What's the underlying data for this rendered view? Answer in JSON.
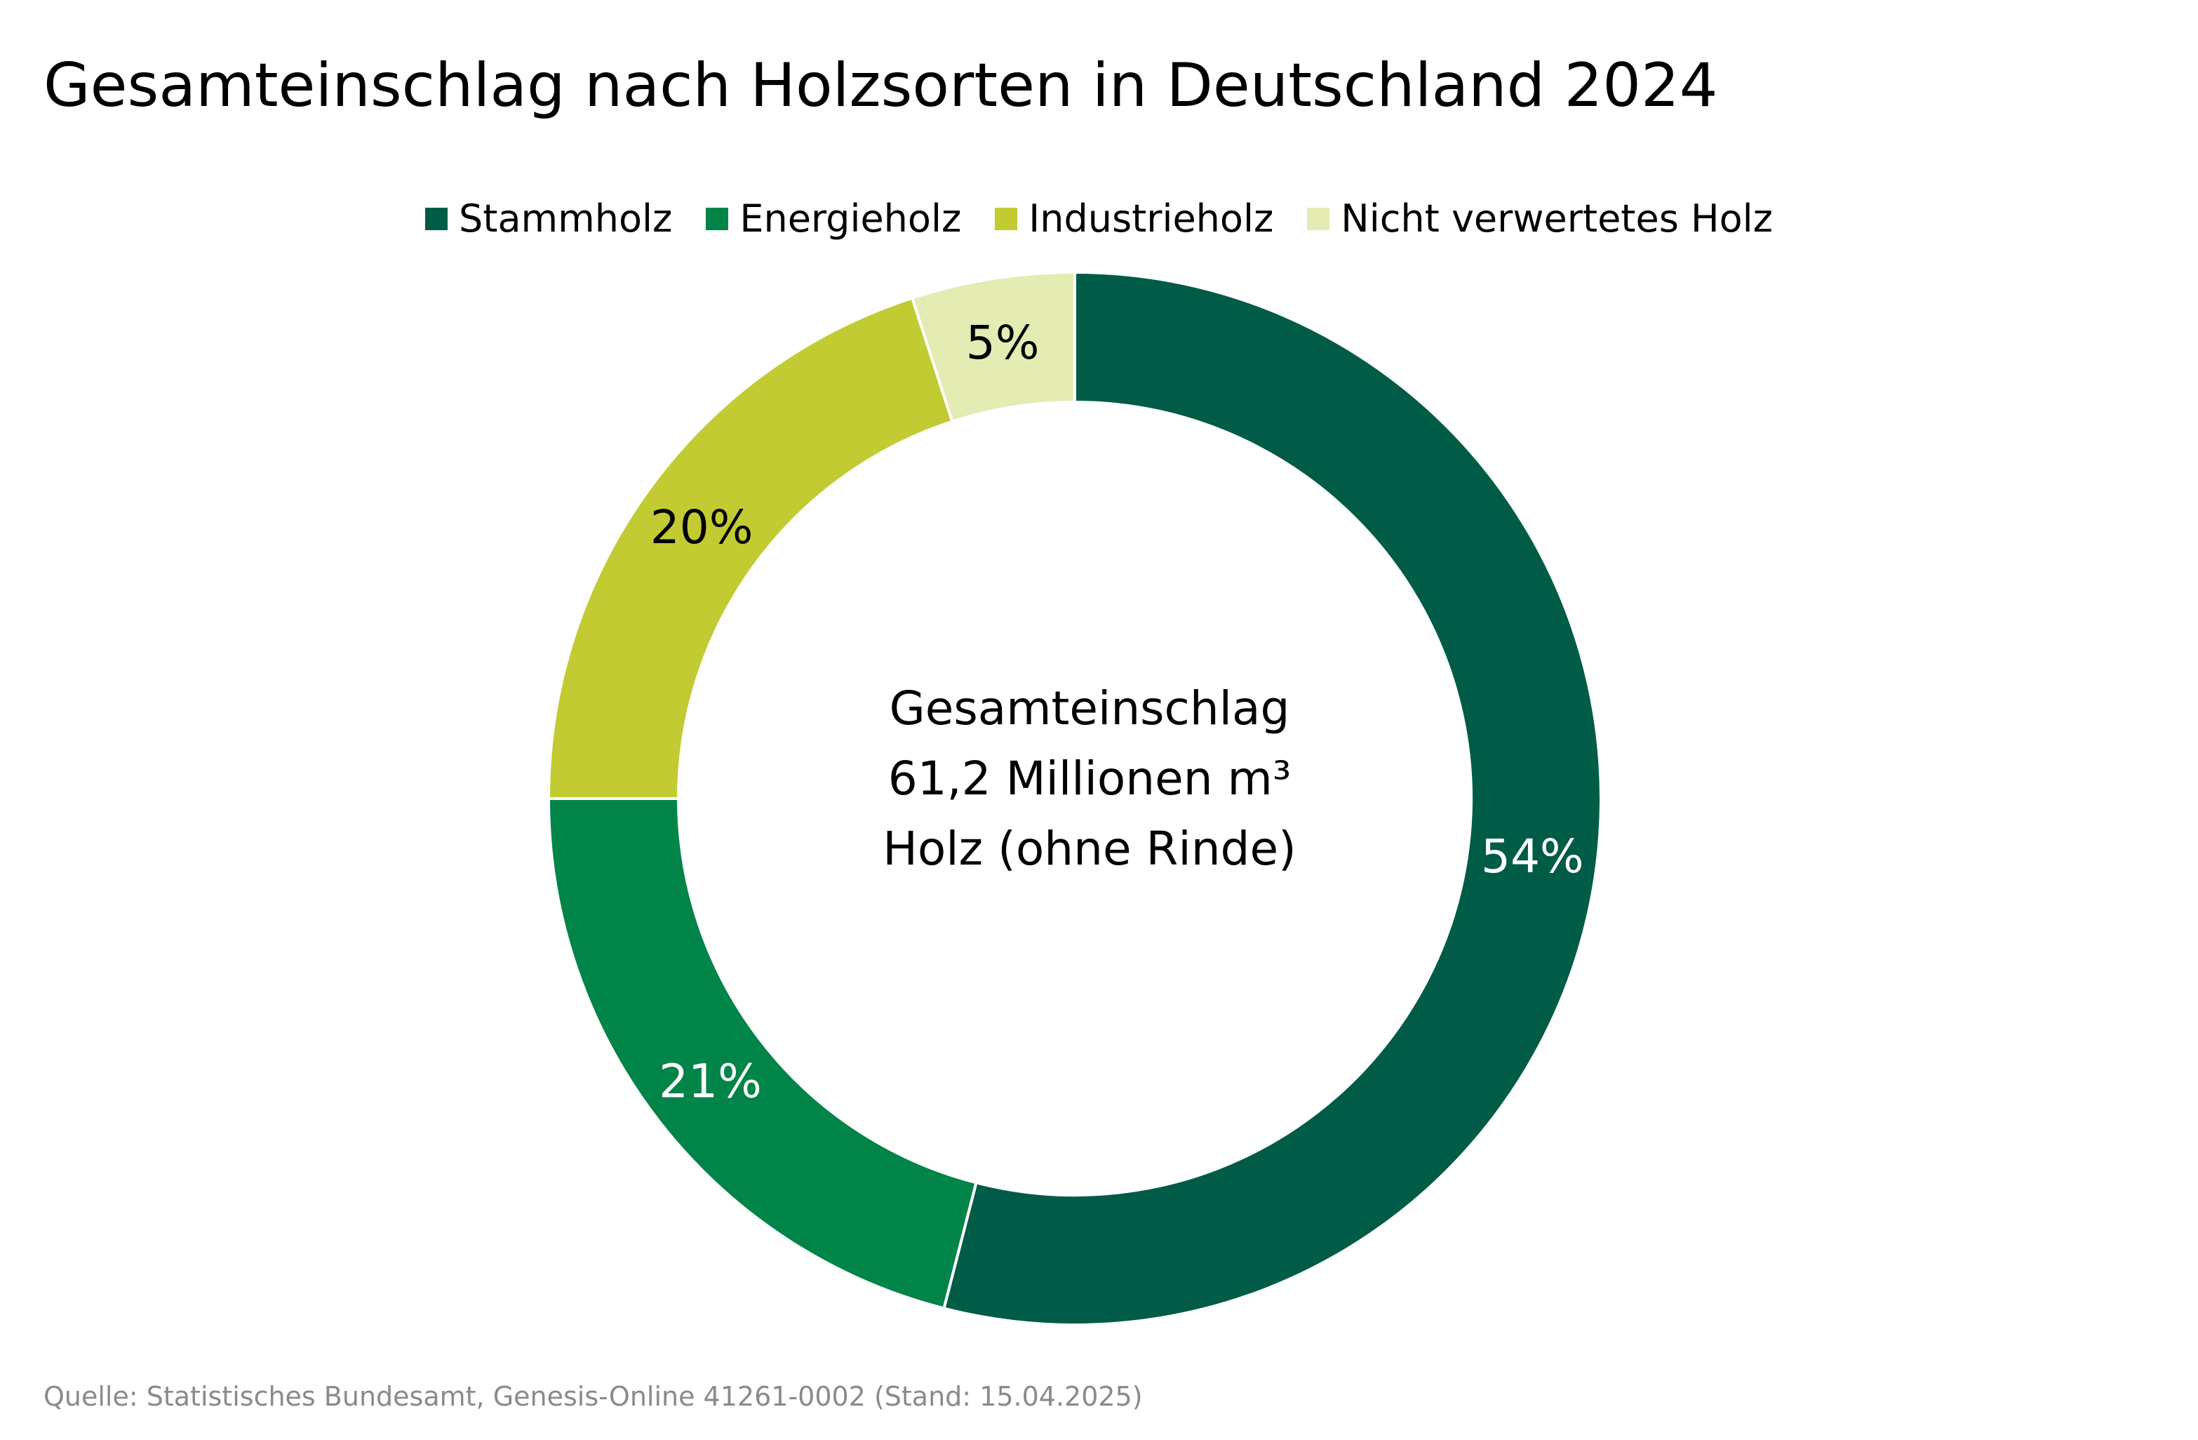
{
  "chart_data": {
    "type": "pie",
    "title": "Gesamteinschlag nach Holzsorten in Deutschland 2024",
    "legend_position": "top",
    "donut": true,
    "categories": [
      "Stammholz",
      "Energieholz",
      "Industrieholz",
      "Nicht verwertetes Holz"
    ],
    "values": [
      54,
      21,
      20,
      5
    ],
    "labels": [
      "54%",
      "21%",
      "20%",
      "5%"
    ],
    "colors": [
      "#005c46",
      "#008448",
      "#c2cb32",
      "#e4ebb3"
    ],
    "label_colors": [
      "#ffffff",
      "#ffffff",
      "#000000",
      "#000000"
    ],
    "center_label": [
      "Gesamteinschlag",
      "61,2 Millionen m³",
      "Holz (ohne Rinde)"
    ],
    "source": "Quelle: Statistisches Bundesamt, Genesis-Online 41261-0002 (Stand: 15.04.2025)"
  }
}
